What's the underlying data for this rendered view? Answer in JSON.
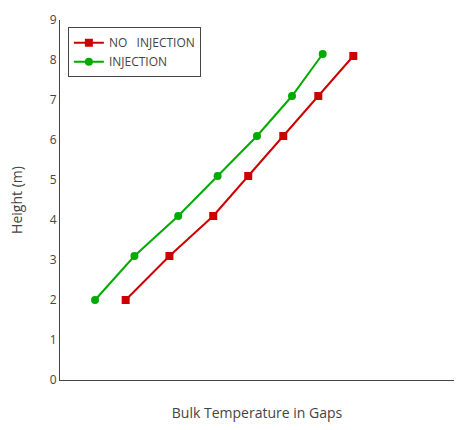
{
  "chart_data": {
    "type": "line",
    "xlabel": "Bulk Temperature in Gaps",
    "ylabel": "Height (m)",
    "series": [
      {
        "name": "NO   INJECTION",
        "color": "#cc0000",
        "marker": "square",
        "x": [
          310,
          320,
          330,
          338,
          346,
          354,
          362
        ],
        "values": [
          2.0,
          3.1,
          4.1,
          5.1,
          6.1,
          7.1,
          8.1
        ]
      },
      {
        "name": "INJECTION",
        "color": "#00aa00",
        "marker": "circle",
        "x": [
          303,
          312,
          322,
          331,
          340,
          348,
          355
        ],
        "values": [
          2.0,
          3.1,
          4.1,
          5.1,
          6.1,
          7.1,
          8.15
        ]
      }
    ],
    "xlim": [
      295,
      385
    ],
    "ylim": [
      0,
      9
    ],
    "yticks": [
      0,
      1,
      2,
      3,
      4,
      5,
      6,
      7,
      8,
      9
    ],
    "grid": false,
    "legend": "upper left",
    "tick_labels": "y"
  }
}
